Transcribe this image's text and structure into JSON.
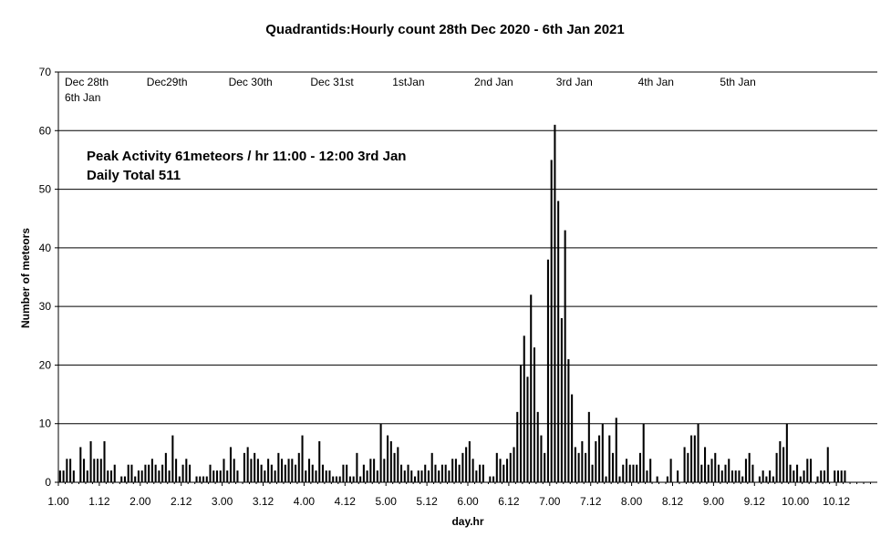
{
  "chart_data": {
    "type": "bar",
    "title": "Quadrantids:Hourly count 28th Dec 2020 - 6th Jan 2021",
    "xlabel": "day.hr",
    "ylabel": "Number of meteors",
    "ylim": [
      0,
      70
    ],
    "y_ticks": [
      "0",
      "10",
      "20",
      "30",
      "40",
      "50",
      "60",
      "70"
    ],
    "x_ticks": [
      "1.00",
      "1.12",
      "2.00",
      "2.12",
      "3.00",
      "3.12",
      "4.00",
      "4.12",
      "5.00",
      "5.12",
      "6.00",
      "6.12",
      "7.00",
      "7.12",
      "8.00",
      "8.12",
      "9.00",
      "9.12",
      "10.00",
      "10.12"
    ],
    "grid": true,
    "day_labels": [
      {
        "text": "Dec 28th",
        "hour": 0
      },
      {
        "text": "6th Jan",
        "hour": 0
      },
      {
        "text": "Dec29th",
        "hour": 24
      },
      {
        "text": "Dec 30th",
        "hour": 48
      },
      {
        "text": "Dec 31st",
        "hour": 72
      },
      {
        "text": "1stJan",
        "hour": 96
      },
      {
        "text": "2nd Jan",
        "hour": 120
      },
      {
        "text": "3rd Jan",
        "hour": 144
      },
      {
        "text": "4th Jan",
        "hour": 168
      },
      {
        "text": "5th Jan",
        "hour": 192
      }
    ],
    "annotations": [
      "Peak Activity 61meteors / hr 11:00 - 12:00  3rd Jan",
      "Daily Total 511"
    ],
    "bar_color": "#000000",
    "values": [
      2,
      2,
      4,
      4,
      2,
      0,
      6,
      4,
      2,
      7,
      4,
      4,
      4,
      7,
      2,
      2,
      3,
      0,
      1,
      1,
      3,
      3,
      1,
      2,
      2,
      3,
      3,
      4,
      3,
      2,
      3,
      5,
      2,
      8,
      4,
      1,
      3,
      4,
      3,
      0,
      1,
      1,
      1,
      1,
      3,
      2,
      2,
      2,
      4,
      2,
      6,
      4,
      2,
      0,
      5,
      6,
      4,
      5,
      4,
      3,
      2,
      4,
      3,
      2,
      5,
      4,
      3,
      4,
      4,
      3,
      5,
      8,
      2,
      4,
      3,
      2,
      7,
      3,
      2,
      2,
      1,
      1,
      1,
      3,
      3,
      1,
      1,
      5,
      1,
      3,
      2,
      4,
      4,
      2,
      10,
      4,
      8,
      7,
      5,
      6,
      3,
      2,
      3,
      2,
      1,
      2,
      2,
      3,
      2,
      5,
      3,
      2,
      3,
      3,
      2,
      4,
      4,
      3,
      5,
      6,
      7,
      4,
      2,
      3,
      3,
      0,
      1,
      1,
      5,
      4,
      3,
      4,
      5,
      6,
      12,
      20,
      25,
      18,
      32,
      23,
      12,
      8,
      5,
      38,
      55,
      61,
      48,
      28,
      43,
      21,
      15,
      6,
      5,
      7,
      5,
      12,
      3,
      7,
      8,
      10,
      1,
      8,
      5,
      11,
      1,
      3,
      4,
      3,
      3,
      3,
      5,
      10,
      2,
      4,
      0,
      1,
      0,
      0,
      1,
      4,
      0,
      2,
      0,
      6,
      5,
      8,
      8,
      10,
      3,
      6,
      3,
      4,
      5,
      3,
      2,
      3,
      4,
      2,
      2,
      2,
      1,
      4,
      5,
      3,
      0,
      1,
      2,
      1,
      2,
      1,
      5,
      7,
      6,
      10,
      3,
      2,
      3,
      1,
      2,
      4,
      4,
      0,
      1,
      2,
      2,
      6,
      0,
      2,
      2,
      2,
      2
    ]
  }
}
